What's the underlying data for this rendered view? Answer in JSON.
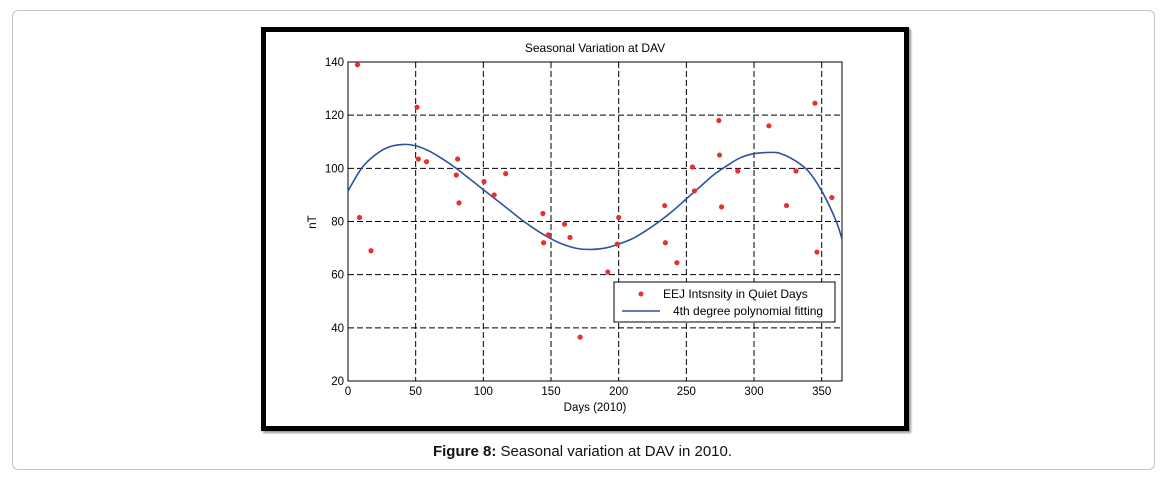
{
  "figure": {
    "caption_label": "Figure 8:",
    "caption_text": " Seasonal variation at DAV in 2010."
  },
  "chart_data": {
    "type": "scatter",
    "title": "Seasonal Variation at DAV",
    "xlabel": "Days (2010)",
    "ylabel": "nT",
    "xlim": [
      0,
      365
    ],
    "ylim": [
      20,
      140
    ],
    "xticks": [
      0,
      50,
      100,
      150,
      200,
      250,
      300,
      350
    ],
    "yticks": [
      20,
      40,
      60,
      80,
      100,
      120,
      140
    ],
    "grid": true,
    "legend_position": "lower-right",
    "colors": {
      "points": "#e8312f",
      "curve": "#2a52a0"
    },
    "series": [
      {
        "name": "EEJ Intsnsity in Quiet Days",
        "kind": "points",
        "points": [
          [
            7,
            139
          ],
          [
            8.5,
            81.5
          ],
          [
            17,
            69
          ],
          [
            51,
            123
          ],
          [
            52,
            103.5
          ],
          [
            58,
            102.5
          ],
          [
            80,
            97.5
          ],
          [
            81,
            103.5
          ],
          [
            82,
            87
          ],
          [
            100.5,
            95
          ],
          [
            108,
            90
          ],
          [
            116.5,
            98
          ],
          [
            144,
            83
          ],
          [
            144.5,
            72
          ],
          [
            148,
            75
          ],
          [
            160,
            79
          ],
          [
            164,
            74
          ],
          [
            171.5,
            36.5
          ],
          [
            192,
            61
          ],
          [
            199,
            71.5
          ],
          [
            200,
            81.5
          ],
          [
            234,
            86
          ],
          [
            234.5,
            72
          ],
          [
            243,
            64.5
          ],
          [
            254.5,
            100.5
          ],
          [
            256,
            91.5
          ],
          [
            274,
            118
          ],
          [
            274.5,
            105
          ],
          [
            276,
            85.5
          ],
          [
            288,
            99
          ],
          [
            311,
            116
          ],
          [
            324,
            86
          ],
          [
            331,
            99
          ],
          [
            345,
            124.5
          ],
          [
            346.5,
            68.5
          ],
          [
            357.5,
            89
          ]
        ]
      },
      {
        "name": "4th degree polynomial fitting",
        "kind": "line",
        "points": [
          [
            0,
            91.5
          ],
          [
            10,
            100
          ],
          [
            20,
            105
          ],
          [
            30,
            108
          ],
          [
            41,
            109
          ],
          [
            50,
            108.5
          ],
          [
            60,
            106.5
          ],
          [
            70,
            103.5
          ],
          [
            80,
            100
          ],
          [
            90,
            96
          ],
          [
            100,
            92
          ],
          [
            110,
            88
          ],
          [
            120,
            84
          ],
          [
            130,
            80
          ],
          [
            140,
            76.5
          ],
          [
            150,
            73.5
          ],
          [
            160,
            71.2
          ],
          [
            170,
            69.8
          ],
          [
            180,
            69.5
          ],
          [
            190,
            70
          ],
          [
            200,
            71.5
          ],
          [
            210,
            73.5
          ],
          [
            220,
            76.5
          ],
          [
            230,
            80
          ],
          [
            240,
            84
          ],
          [
            250,
            88.5
          ],
          [
            260,
            93
          ],
          [
            270,
            97.5
          ],
          [
            280,
            101
          ],
          [
            290,
            104
          ],
          [
            300,
            105.5
          ],
          [
            313,
            106
          ],
          [
            320,
            105.5
          ],
          [
            330,
            103
          ],
          [
            340,
            99
          ],
          [
            350,
            91.5
          ],
          [
            360,
            81
          ],
          [
            365,
            73.5
          ]
        ]
      }
    ]
  }
}
